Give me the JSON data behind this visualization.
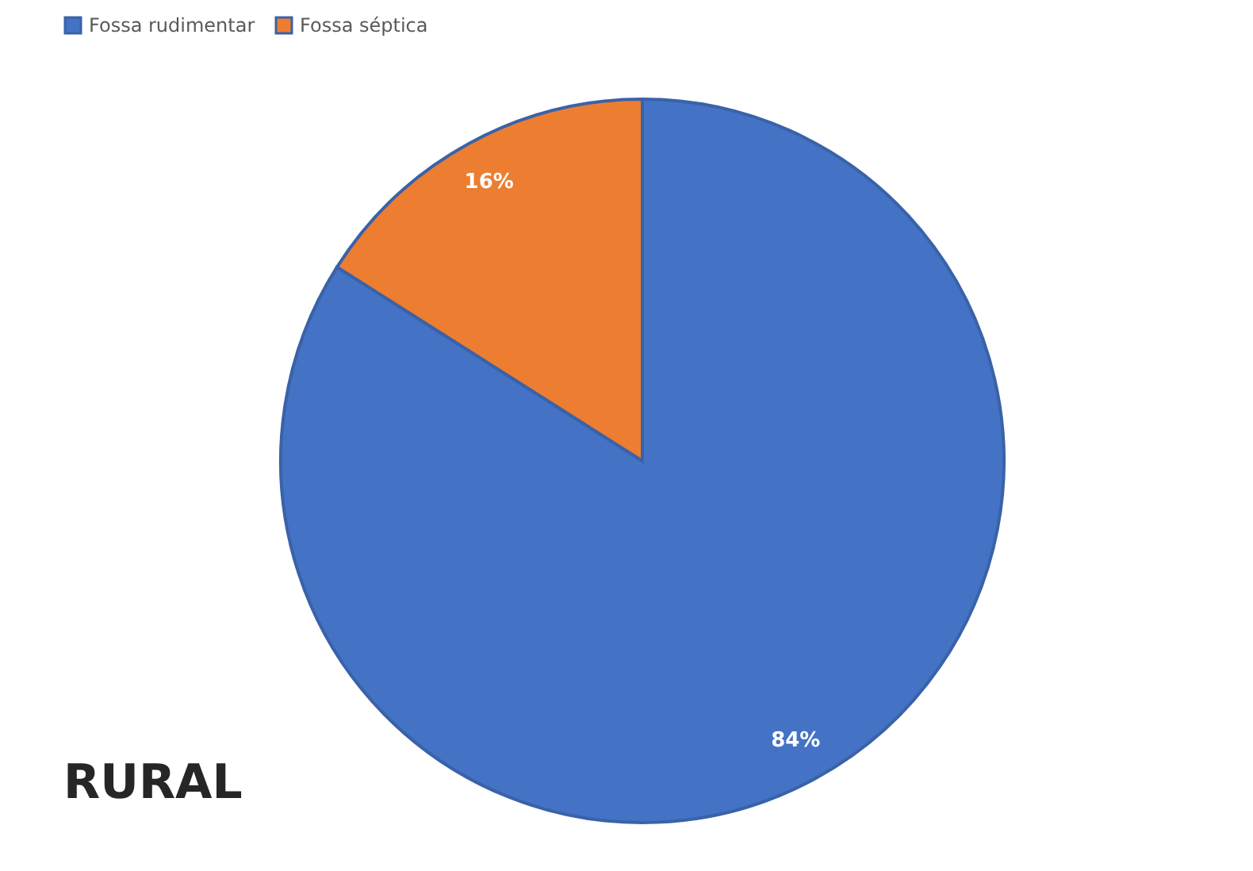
{
  "chart_data": {
    "type": "pie",
    "title": "RURAL",
    "categories": [
      "Fossa rudimentar",
      "Fossa séptica"
    ],
    "values": [
      84,
      16
    ],
    "colors": [
      "#4472c4",
      "#ed7d31"
    ],
    "value_labels": [
      "84%",
      "16%"
    ],
    "legend": "top"
  }
}
